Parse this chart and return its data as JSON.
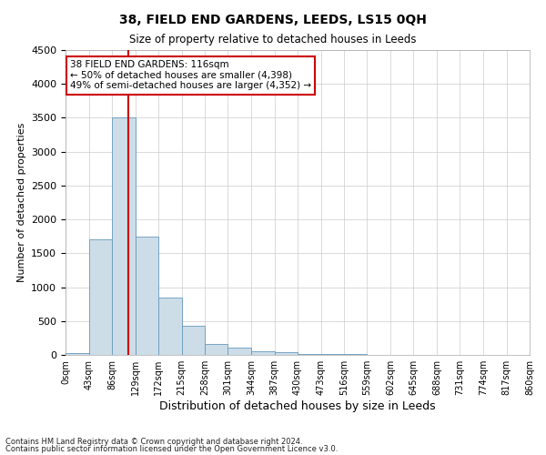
{
  "title": "38, FIELD END GARDENS, LEEDS, LS15 0QH",
  "subtitle": "Size of property relative to detached houses in Leeds",
  "xlabel": "Distribution of detached houses by size in Leeds",
  "ylabel": "Number of detached properties",
  "bar_color": "#ccdde8",
  "bar_edge_color": "#6699bb",
  "grid_color": "#cccccc",
  "bg_color": "#ffffff",
  "property_line_x": 116,
  "property_line_color": "#cc0000",
  "annotation_line1": "38 FIELD END GARDENS: 116sqm",
  "annotation_line2": "← 50% of detached houses are smaller (4,398)",
  "annotation_line3": "49% of semi-detached houses are larger (4,352) →",
  "annotation_box_color": "#cc0000",
  "bins": [
    0,
    43,
    86,
    129,
    172,
    215,
    258,
    301,
    344,
    387,
    430,
    473,
    516,
    559,
    602,
    645,
    688,
    731,
    774,
    817,
    860
  ],
  "bin_labels": [
    "0sqm",
    "43sqm",
    "86sqm",
    "129sqm",
    "172sqm",
    "215sqm",
    "258sqm",
    "301sqm",
    "344sqm",
    "387sqm",
    "430sqm",
    "473sqm",
    "516sqm",
    "559sqm",
    "602sqm",
    "645sqm",
    "688sqm",
    "731sqm",
    "774sqm",
    "817sqm",
    "860sqm"
  ],
  "bar_heights": [
    30,
    1700,
    3500,
    1750,
    850,
    430,
    165,
    105,
    50,
    35,
    20,
    12,
    8,
    5,
    3,
    1,
    1,
    0,
    0,
    0
  ],
  "ylim": [
    0,
    4500
  ],
  "yticks": [
    0,
    500,
    1000,
    1500,
    2000,
    2500,
    3000,
    3500,
    4000,
    4500
  ],
  "footnote1": "Contains HM Land Registry data © Crown copyright and database right 2024.",
  "footnote2": "Contains public sector information licensed under the Open Government Licence v3.0."
}
